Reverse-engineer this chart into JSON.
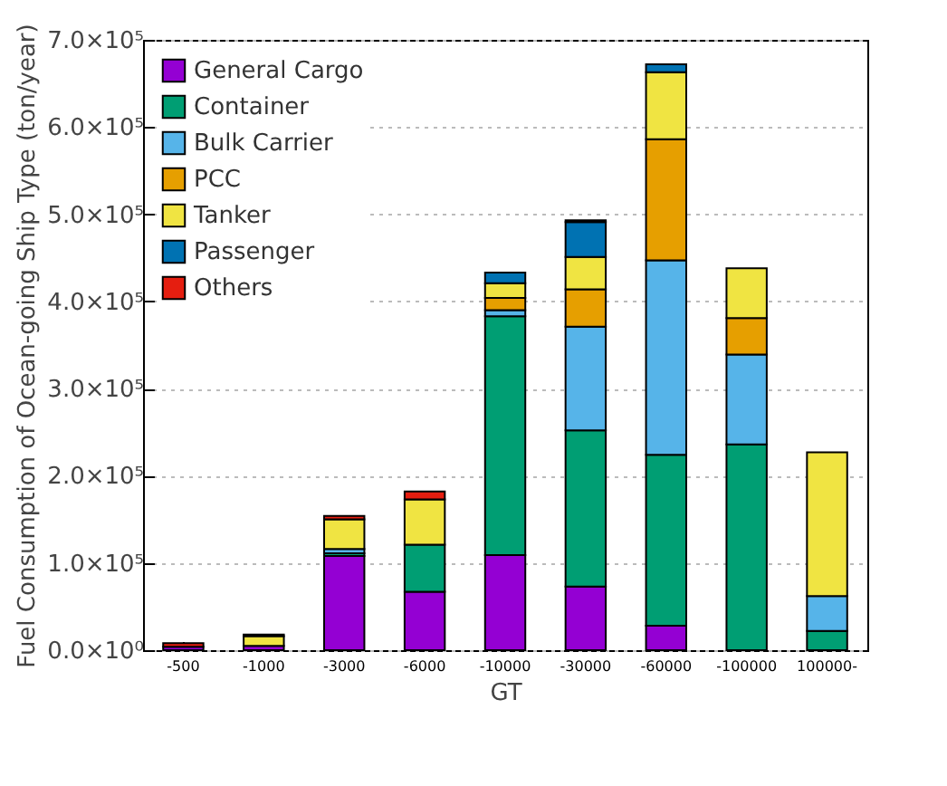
{
  "chart_data": {
    "type": "bar",
    "stacked": true,
    "xlabel": "GT",
    "ylabel": "Fuel Consumption of Ocean-going Ship Type (ton/year)",
    "categories": [
      "-500",
      "-1000",
      "-3000",
      "-6000",
      "-10000",
      "-30000",
      "-60000",
      "-100000",
      "100000-"
    ],
    "series": [
      {
        "name": "General Cargo",
        "color": "#9400d3",
        "values": [
          4000,
          5000,
          108000,
          67000,
          109000,
          73000,
          28000,
          null,
          null
        ]
      },
      {
        "name": "Container",
        "color": "#009e73",
        "values": [
          null,
          null,
          3000,
          54000,
          274000,
          179000,
          196000,
          236000,
          22000
        ]
      },
      {
        "name": "Bulk Carrier",
        "color": "#56b4e9",
        "values": [
          null,
          null,
          5000,
          null,
          7000,
          119000,
          223000,
          103000,
          40000
        ]
      },
      {
        "name": "PCC",
        "color": "#e69f00",
        "values": [
          null,
          null,
          null,
          null,
          14000,
          43000,
          139000,
          42000,
          null
        ]
      },
      {
        "name": "Tanker",
        "color": "#f0e442",
        "values": [
          null,
          11000,
          34000,
          52000,
          17000,
          37000,
          77000,
          57000,
          165000
        ]
      },
      {
        "name": "Passenger",
        "color": "#0072b2",
        "values": [
          null,
          null,
          null,
          null,
          12000,
          40000,
          9000,
          null,
          null
        ]
      },
      {
        "name": "Others",
        "color": "#e51e10",
        "values": [
          4000,
          2000,
          4000,
          9000,
          null,
          2000,
          null,
          null,
          null
        ]
      }
    ],
    "ylim": [
      0,
      700000
    ],
    "yticks": [
      {
        "value": 0,
        "label": "0.0×10⁰"
      },
      {
        "value": 100000,
        "label": "1.0×10⁵"
      },
      {
        "value": 200000,
        "label": "2.0×10⁵"
      },
      {
        "value": 300000,
        "label": "3.0×10⁵"
      },
      {
        "value": 400000,
        "label": "4.0×10⁵"
      },
      {
        "value": 500000,
        "label": "5.0×10⁵"
      },
      {
        "value": 600000,
        "label": "6.0×10⁵"
      },
      {
        "value": 700000,
        "label": "7.0×10⁵"
      }
    ],
    "grid": "y",
    "legend": "top left"
  }
}
